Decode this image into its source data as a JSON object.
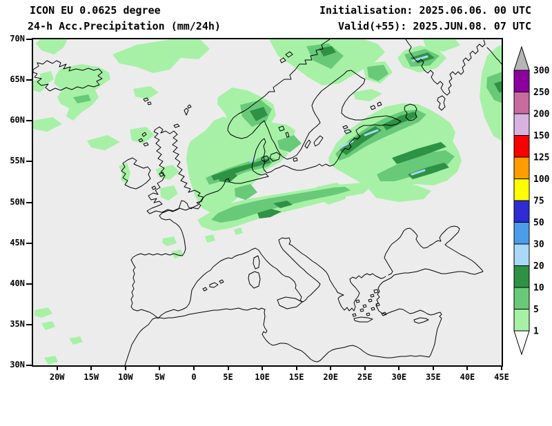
{
  "header": {
    "model_line": "ICON EU 0.0625 degree",
    "product_line": "24-h Acc.Precipitation (mm/24h)",
    "init_line": "Initialisation: 2025.06.06. 00 UTC",
    "valid_line": "Valid(+55): 2025.JUN.08. 07 UTC"
  },
  "map": {
    "background_color": "#ececec",
    "coastline_color": "#000000",
    "domain": {
      "lon_min": -23.5,
      "lon_max": 45.0,
      "lat_min": 30.0,
      "lat_max": 70.0
    },
    "lat_ticks": [
      {
        "label": "70N",
        "deg": 70
      },
      {
        "label": "65N",
        "deg": 65
      },
      {
        "label": "60N",
        "deg": 60
      },
      {
        "label": "55N",
        "deg": 55
      },
      {
        "label": "50N",
        "deg": 50
      },
      {
        "label": "45N",
        "deg": 45
      },
      {
        "label": "40N",
        "deg": 40
      },
      {
        "label": "35N",
        "deg": 35
      },
      {
        "label": "30N",
        "deg": 30
      }
    ],
    "lon_ticks": [
      {
        "label": "20W",
        "deg": -20
      },
      {
        "label": "15W",
        "deg": -15
      },
      {
        "label": "10W",
        "deg": -10
      },
      {
        "label": "5W",
        "deg": -5
      },
      {
        "label": "0",
        "deg": 0
      },
      {
        "label": "5E",
        "deg": 5
      },
      {
        "label": "10E",
        "deg": 10
      },
      {
        "label": "15E",
        "deg": 15
      },
      {
        "label": "20E",
        "deg": 20
      },
      {
        "label": "25E",
        "deg": 25
      },
      {
        "label": "30E",
        "deg": 30
      },
      {
        "label": "35E",
        "deg": 35
      },
      {
        "label": "40E",
        "deg": 40
      },
      {
        "label": "45E",
        "deg": 45
      }
    ]
  },
  "colorbar": {
    "unit": "mm/24h",
    "labels": [
      "1",
      "5",
      "10",
      "20",
      "30",
      "50",
      "75",
      "100",
      "125",
      "150",
      "200",
      "250",
      "300"
    ],
    "segment_colors": [
      "#a6f1a6",
      "#68ca78",
      "#2e9245",
      "#a9d9f7",
      "#4a9ce8",
      "#2d2dd2",
      "#ffff00",
      "#ff9c00",
      "#f60000",
      "#d9b3df",
      "#c76b9e",
      "#8c00a0"
    ],
    "over_color": "#b5b5b5",
    "under_color": "#fbfbfb"
  },
  "precip_colors": {
    "light_green": "#a6f1a6",
    "medium_green": "#68ca78",
    "dark_green": "#2e9245",
    "light_blue": "#a9d9f7"
  },
  "chart_data": {
    "type": "heatmap",
    "title": "24-h Acc.Precipitation (mm/24h)",
    "model": "ICON EU 0.0625 degree",
    "initialisation": "2025.06.06. 00 UTC",
    "valid": "2025.JUN.08. 07 UTC",
    "lead_time_hours": 55,
    "scale_mm": [
      1,
      5,
      10,
      20,
      30,
      50,
      75,
      100,
      125,
      150,
      200,
      250,
      300
    ],
    "xlabel_ticks": [
      "20W",
      "15W",
      "10W",
      "5W",
      "0",
      "5E",
      "10E",
      "15E",
      "20E",
      "25E",
      "30E",
      "35E",
      "40E",
      "45E"
    ],
    "ylabel_ticks": [
      "70N",
      "65N",
      "60N",
      "55N",
      "50N",
      "45N",
      "40N",
      "35N",
      "30N"
    ],
    "regions": [
      {
        "area": "Iceland and sea south of it",
        "precip_mm": "1-10"
      },
      {
        "area": "Norwegian Sea / Arctic edge",
        "precip_mm": "1-5"
      },
      {
        "area": "Norway west coast and mountains",
        "precip_mm": "5-20"
      },
      {
        "area": "Northern Sweden and Finland",
        "precip_mm": "1-20"
      },
      {
        "area": "Baltic states / Gulf of Riga bands",
        "precip_mm": "10-30"
      },
      {
        "area": "Western Russia diagonal bands",
        "precip_mm": "10-30"
      },
      {
        "area": "Kola Peninsula band",
        "precip_mm": "10-30"
      },
      {
        "area": "Netherlands / German Bight coast",
        "precip_mm": "10-30"
      },
      {
        "area": "Central Germany to Czechia band",
        "precip_mm": "1-20"
      },
      {
        "area": "Denmark",
        "precip_mm": "1-10"
      },
      {
        "area": "Southern England and west Ireland",
        "precip_mm": "1-5"
      },
      {
        "area": "Iberia, Mediterranean, Balkans, Turkey",
        "precip_mm": "0"
      }
    ]
  }
}
